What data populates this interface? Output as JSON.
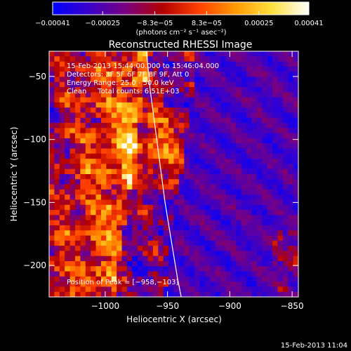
{
  "chart_data": {
    "type": "heatmap",
    "title": "Reconstructed RHESSI Image",
    "xlabel": "Heliocentric X (arcsec)",
    "ylabel": "Heliocentric Y (arcsec)",
    "xlim": [
      -1045,
      -845
    ],
    "ylim": [
      -225,
      -30
    ],
    "x_ticks": [
      {
        "value": -1000,
        "label": "−1000"
      },
      {
        "value": -950,
        "label": "−950"
      },
      {
        "value": -900,
        "label": "−900"
      },
      {
        "value": -850,
        "label": "−850"
      }
    ],
    "y_ticks": [
      {
        "value": -50,
        "label": "−50"
      },
      {
        "value": -100,
        "label": "−100"
      },
      {
        "value": -150,
        "label": "−150"
      },
      {
        "value": -200,
        "label": "−200"
      }
    ],
    "annotations": [
      "15-Feb-2013 15:44:00.000 to 15:46:04.000",
      "Detectors: 3F 5F 6F 7F 8F 9F, Att 0",
      "Energy Range: 25.0 - 50.0 keV",
      "Clean     Total counts: 6.51E+03"
    ],
    "peak_label": "Position of Peak = [−958,−103]",
    "peak": [
      -958,
      -103
    ],
    "colorbar": {
      "min": -0.00041,
      "max": 0.00041,
      "tick_labels": [
        "−0.00041",
        "−0.00025",
        "−8.3e−05",
        "8.3e−05",
        "0.00025",
        "0.00041"
      ],
      "tick_values": [
        -0.00041,
        -0.00025,
        -8.3e-05,
        8.3e-05,
        0.00025,
        0.00041
      ],
      "units": "(photons cm⁻² s⁻¹ asec⁻²)",
      "colormap": [
        "#0000ff",
        "#3a00c8",
        "#7a0080",
        "#b30000",
        "#ff4000",
        "#ff9a00",
        "#ffe040",
        "#ffffff"
      ]
    },
    "limb_curve": [
      [
        -967,
        -30
      ],
      [
        -964,
        -60
      ],
      [
        -960,
        -90
      ],
      [
        -956,
        -120
      ],
      [
        -952,
        -150
      ],
      [
        -947,
        -180
      ],
      [
        -942,
        -210
      ],
      [
        -939,
        -225
      ]
    ]
  },
  "footer_timestamp": "15-Feb-2013 11:04"
}
